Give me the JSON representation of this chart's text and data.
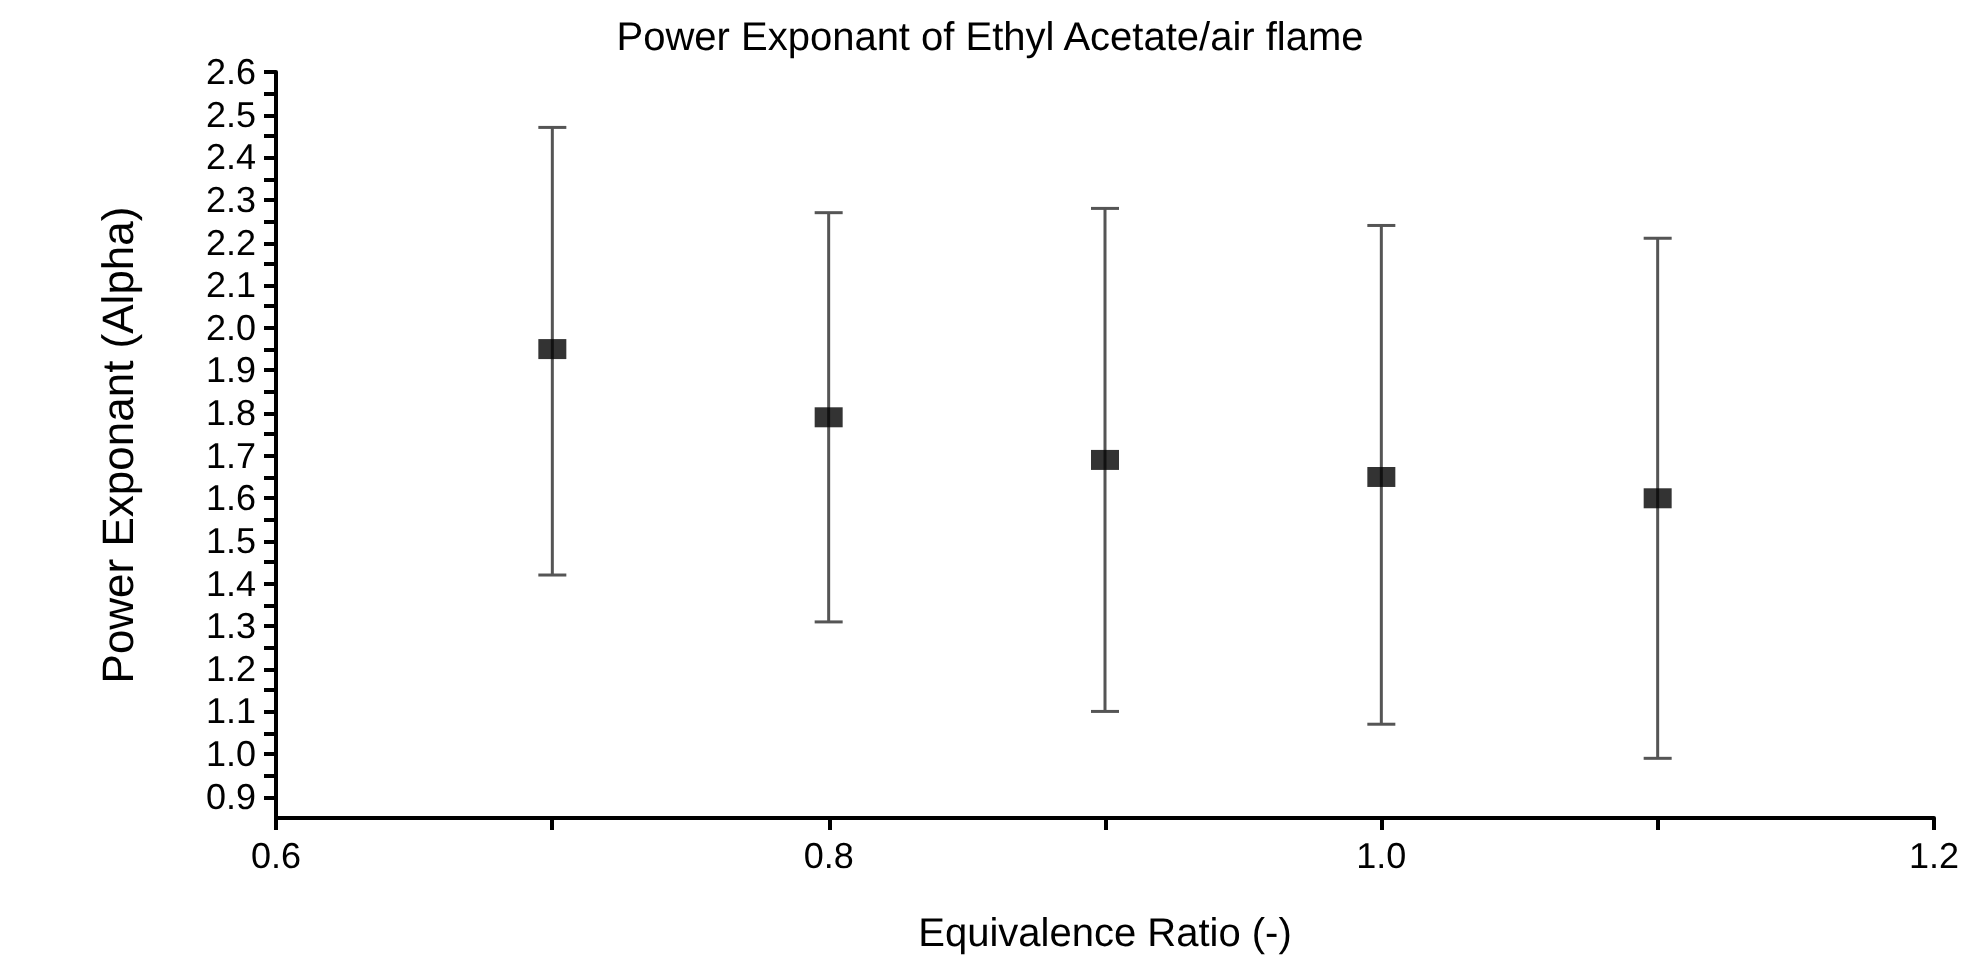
{
  "chart_data": {
    "type": "scatter",
    "title": "Power Exponant of Ethyl Acetate/air flame",
    "xlabel": "Equivalence Ratio (-)",
    "ylabel": "Power Exponant (Alpha)",
    "x": [
      0.7,
      0.8,
      0.9,
      1.0,
      1.1
    ],
    "series": [
      {
        "color": "#000000",
        "values": [
          1.95,
          1.79,
          1.69,
          1.65,
          1.6
        ],
        "errors": [
          [
            1.42,
            2.47
          ],
          [
            1.31,
            2.27
          ],
          [
            1.1,
            2.28
          ],
          [
            1.07,
            2.24
          ],
          [
            0.99,
            2.21
          ]
        ]
      }
    ],
    "marker": "square",
    "xlim": [
      0.6,
      1.2
    ],
    "xticks": [
      0.6,
      {
        "value": 0.7,
        "label": null
      },
      0.8,
      {
        "value": 0.9,
        "label": null
      },
      {
        "value": 1.0,
        "label": "1.0"
      },
      {
        "value": 1.1,
        "label": null
      },
      1.2
    ],
    "ylim": [
      0.85,
      2.6
    ],
    "yticks": [
      0.9,
      {
        "value": 0.95,
        "label": null
      },
      {
        "value": 1.0,
        "label": "1.0"
      },
      {
        "value": 1.05,
        "label": null
      },
      1.1,
      {
        "value": 1.15,
        "label": null
      },
      1.2,
      {
        "value": 1.25,
        "label": null
      },
      1.3,
      {
        "value": 1.35,
        "label": null
      },
      1.4,
      {
        "value": 1.45,
        "label": null
      },
      1.5,
      {
        "value": 1.55,
        "label": null
      },
      1.6,
      {
        "value": 1.65,
        "label": null
      },
      1.7,
      {
        "value": 1.75,
        "label": null
      },
      1.8,
      {
        "value": 1.85,
        "label": null
      },
      1.9,
      {
        "value": 1.95,
        "label": null
      },
      {
        "value": 2.0,
        "label": "2.0"
      },
      {
        "value": 2.05,
        "label": null
      },
      2.1,
      {
        "value": 2.15,
        "label": null
      },
      2.2,
      {
        "value": 2.25,
        "label": null
      },
      2.3,
      {
        "value": 2.35,
        "label": null
      },
      2.4,
      {
        "value": 2.45,
        "label": null
      },
      2.5,
      {
        "value": 2.55,
        "label": null
      },
      2.6
    ]
  }
}
